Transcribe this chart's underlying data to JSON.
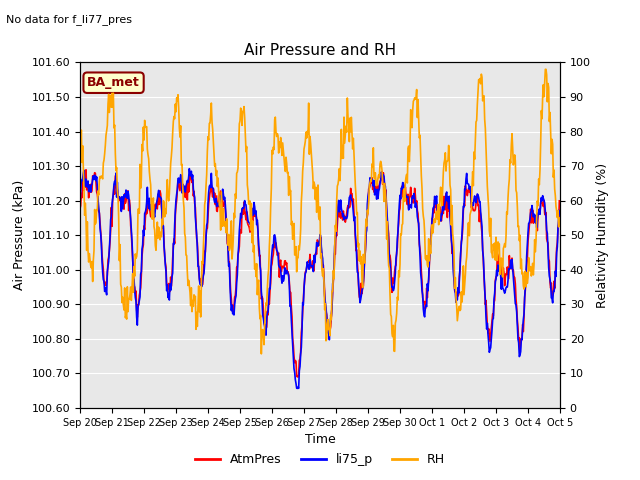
{
  "title": "Air Pressure and RH",
  "no_data_text": "No data for f_li77_pres",
  "legend_label_text": "BA_met",
  "xlabel": "Time",
  "ylabel_left": "Air Pressure (kPa)",
  "ylabel_right": "Relativity Humidity (%)",
  "ylim_left": [
    100.6,
    101.6
  ],
  "ylim_right": [
    0,
    100
  ],
  "yticks_left": [
    100.6,
    100.7,
    100.8,
    100.9,
    101.0,
    101.1,
    101.2,
    101.3,
    101.4,
    101.5,
    101.6
  ],
  "yticks_right": [
    0,
    10,
    20,
    30,
    40,
    50,
    60,
    70,
    80,
    90,
    100
  ],
  "bg_color": "#e8e8e8",
  "grid_color": "#ffffff",
  "line_colors": {
    "AtmPres": "#ff0000",
    "li75_p": "#0000ff",
    "RH": "#ffa500"
  },
  "line_widths": {
    "AtmPres": 1.2,
    "li75_p": 1.2,
    "RH": 1.2
  },
  "xtick_labels": [
    "Sep 20",
    "Sep 21",
    "Sep 22",
    "Sep 23",
    "Sep 24",
    "Sep 25",
    "Sep 26",
    "Sep 27",
    "Sep 28",
    "Sep 29",
    "Sep 30",
    "Oct 1",
    "Oct 2",
    "Oct 3",
    "Oct 4",
    "Oct 5"
  ]
}
